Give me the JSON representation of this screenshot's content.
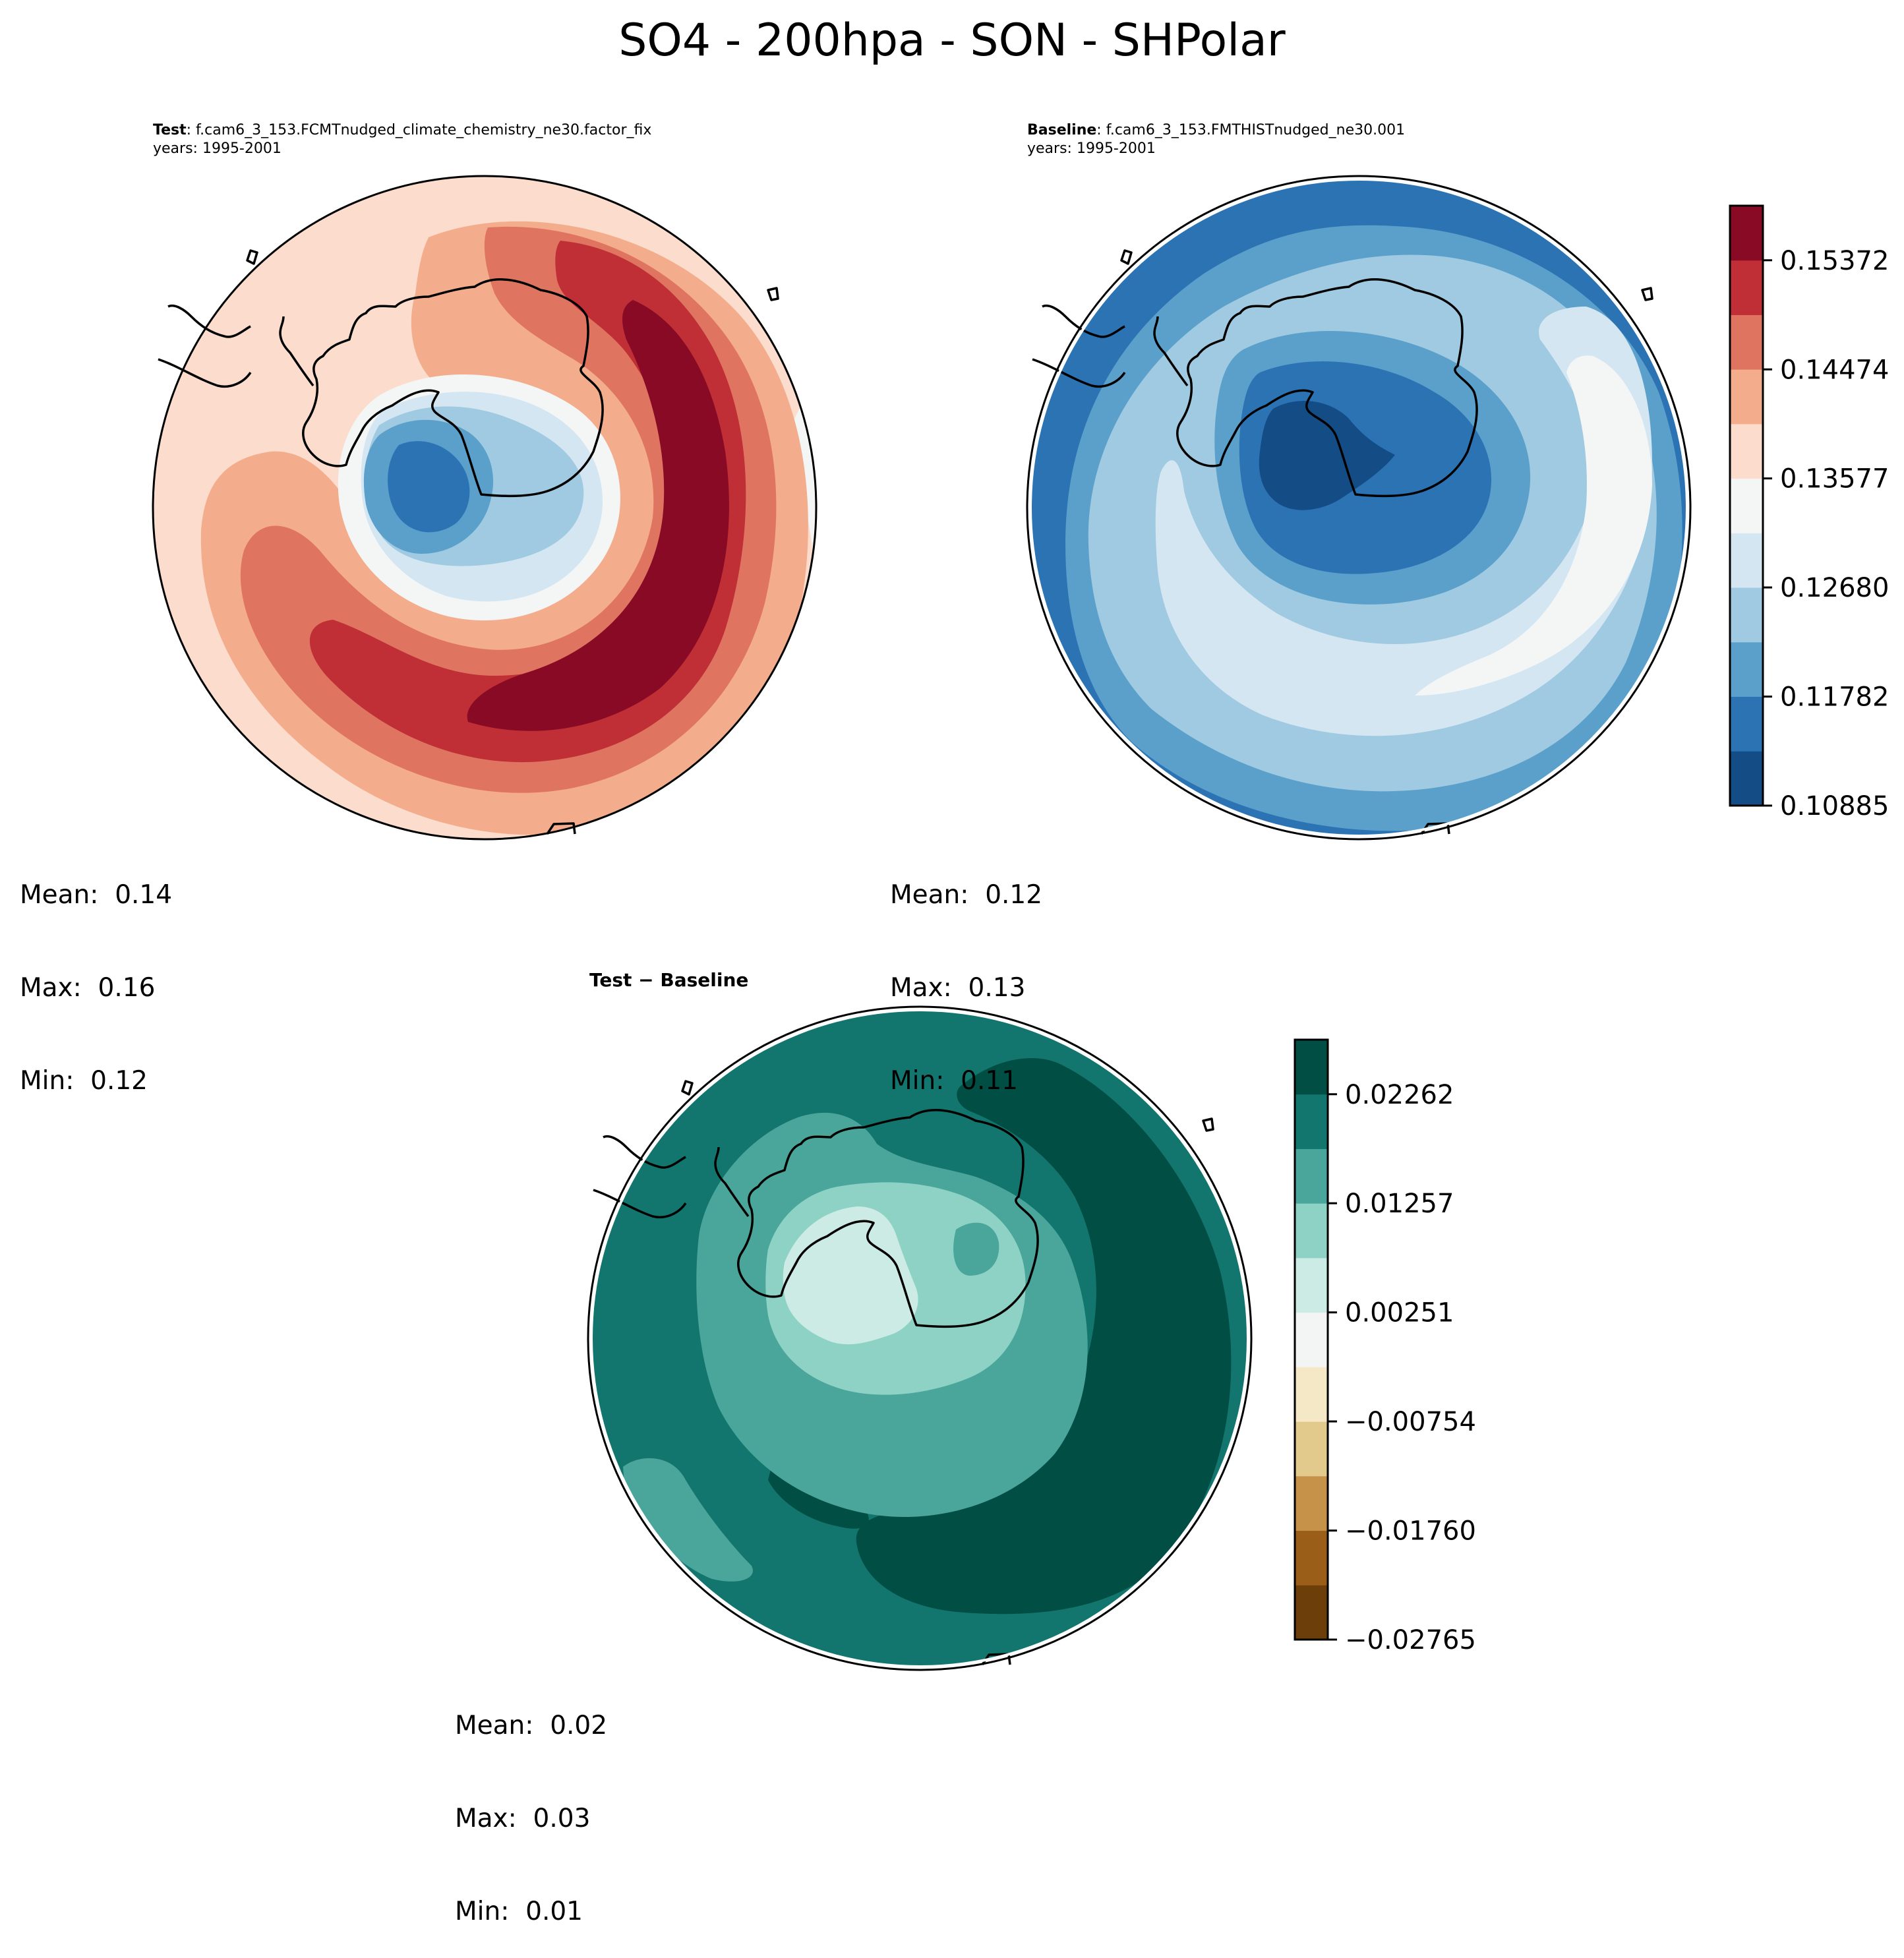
{
  "figure": {
    "title": "SO4 - 200hpa - SON - SHPolar"
  },
  "panels": {
    "test": {
      "label_bold": "Test",
      "label_rest": ": f.cam6_3_153.FCMTnudged_climate_chemistry_ne30.factor_fix",
      "years": "years: 1995-2001",
      "stats": {
        "mean": "Mean:  0.14",
        "max": "Max:  0.16",
        "min": "Min:  0.12"
      }
    },
    "baseline": {
      "label_bold": "Baseline",
      "label_rest": ": f.cam6_3_153.FMTHISTnudged_ne30.001",
      "years": "years: 1995-2001",
      "stats": {
        "mean": "Mean:  0.12",
        "max": "Max:  0.13",
        "min": "Min:  0.11"
      }
    },
    "difference": {
      "title": "Test − Baseline",
      "stats": {
        "mean": "Mean:  0.02",
        "max": "Max:  0.03",
        "min": "Min:  0.01"
      }
    }
  },
  "chart_data": [
    {
      "type": "heatmap",
      "name": "test",
      "projection": "south-polar-stereographic",
      "region": "SHPolar",
      "colormap": "RdBu_r",
      "colors": [
        "#144c86",
        "#2c73b4",
        "#5aa0cb",
        "#9fcae1",
        "#d4e6f2",
        "#f4f6f6",
        "#fcdccd",
        "#f4ad8c",
        "#df7560",
        "#c02e36",
        "#880a24"
      ],
      "levels_range": [
        0.10885,
        0.15821
      ],
      "tick_labels": [
        "0.10885",
        "0.11782",
        "0.12680",
        "0.13577",
        "0.14474",
        "0.15372"
      ],
      "ticks": [
        0.10885,
        0.11782,
        0.1268,
        0.13577,
        0.14474,
        0.15372
      ],
      "mean": 0.14,
      "max": 0.16,
      "min": 0.12,
      "description": "High values (dark red) arc around the eastern/southern side; low values (blue) over West Antarctica/Ross region"
    },
    {
      "type": "heatmap",
      "name": "baseline",
      "projection": "south-polar-stereographic",
      "region": "SHPolar",
      "colormap": "RdBu_r",
      "colors": [
        "#144c86",
        "#2c73b4",
        "#5aa0cb",
        "#9fcae1",
        "#d4e6f2",
        "#f4f6f6",
        "#fcdccd",
        "#f4ad8c",
        "#df7560",
        "#c02e36",
        "#880a24"
      ],
      "levels_range": [
        0.10885,
        0.15821
      ],
      "tick_labels": [
        "0.10885",
        "0.11782",
        "0.12680",
        "0.13577",
        "0.14474",
        "0.15372"
      ],
      "ticks": [
        0.10885,
        0.11782,
        0.1268,
        0.13577,
        0.14474,
        0.15372
      ],
      "mean": 0.12,
      "max": 0.13,
      "min": 0.11,
      "colorbar": "shared with test panel, right side"
    },
    {
      "type": "heatmap",
      "name": "difference",
      "projection": "south-polar-stereographic",
      "region": "SHPolar",
      "colormap": "BrBG",
      "colors": [
        "#6b3e0a",
        "#9b5e19",
        "#c69148",
        "#e2c98c",
        "#f5e8c7",
        "#f3f4f4",
        "#cbebe4",
        "#8ed2c5",
        "#4aa59b",
        "#13766e",
        "#014e44"
      ],
      "levels_range": [
        -0.02765,
        0.02765
      ],
      "tick_labels": [
        "−0.02765",
        "−0.01760",
        "−0.00754",
        "0.00251",
        "0.01257",
        "0.02262"
      ],
      "ticks": [
        -0.02765,
        -0.0176,
        -0.00754,
        0.00251,
        0.01257,
        0.02262
      ],
      "mean": 0.02,
      "max": 0.03,
      "min": 0.01
    }
  ]
}
